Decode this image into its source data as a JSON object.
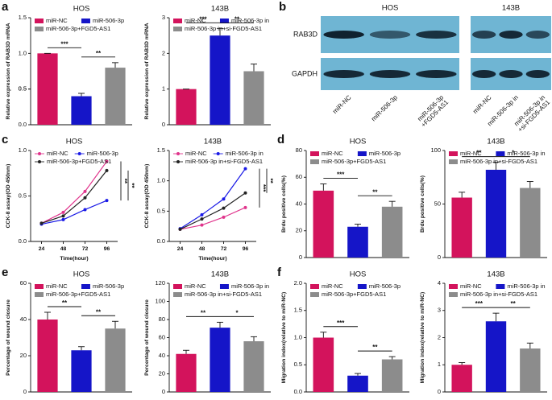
{
  "chart_data": [
    {
      "panel": "a",
      "type": "bar",
      "title": "HOS",
      "ylabel": "Relative expression of RAB3D mRNA",
      "categories": [
        "miR-NC",
        "miR-506-3p",
        "miR-506-3p+FGD5-AS1"
      ],
      "colors": [
        "#d3135c",
        "#1515c8",
        "#8c8c8c"
      ],
      "values": [
        1.0,
        0.4,
        0.8
      ],
      "errors": [
        0,
        0.04,
        0.07
      ],
      "ylim": [
        0,
        1.5
      ],
      "yticks": [
        {
          "value": 0,
          "label": "0.0"
        },
        0.5,
        {
          "value": 1,
          "label": "1.0"
        },
        0.5,
        {
          "value": 1.5,
          "label": "1.5"
        }
      ],
      "annotations": [
        "***",
        "**"
      ]
    },
    {
      "type": "bar",
      "title": "143B",
      "ylabel": "Relative expression of RAB3D mRNA",
      "categories": [
        "miR-NC",
        "miR-506-3p in",
        "miR-506-3p in+si-FGD5-AS1"
      ],
      "colors": [
        "#d3135c",
        "#1515c8",
        "#8c8c8c"
      ],
      "values": [
        1.0,
        2.5,
        1.5
      ],
      "errors": [
        0,
        0.2,
        0.2
      ],
      "ylim": [
        0,
        3
      ],
      "yticks": [
        0,
        1,
        2,
        3
      ],
      "annotations": [
        "***",
        "**"
      ]
    },
    {
      "panel": "c",
      "type": "line",
      "title": "HOS",
      "ylabel": "CCK-8 assay(OD 450nm)",
      "xlabel": "Time(hour)",
      "x": [
        24,
        48,
        72,
        96
      ],
      "xlim": [
        12,
        108
      ],
      "xticks": [
        24,
        48,
        72,
        96
      ],
      "ylim": [
        0,
        1.0
      ],
      "yticks": [
        {
          "value": 0,
          "label": "0.0"
        },
        0.5,
        {
          "value": 1,
          "label": "1.0"
        }
      ],
      "series": [
        {
          "name": "miR-NC",
          "color": "#e0348c",
          "values": [
            0.2,
            0.32,
            0.55,
            0.88
          ]
        },
        {
          "name": "miR-506-3p",
          "color": "#1a1ae6",
          "values": [
            0.19,
            0.24,
            0.35,
            0.45
          ]
        },
        {
          "name": "miR-506-3p+FGD5-AS1",
          "color": "#222222",
          "values": [
            0.2,
            0.28,
            0.48,
            0.78
          ]
        }
      ],
      "annotations": [
        "**",
        "**"
      ]
    },
    {
      "type": "line",
      "title": "143B",
      "ylabel": "CCK-8 assay(OD 450nm)",
      "xlabel": "Time(hour)",
      "x": [
        24,
        48,
        72,
        96
      ],
      "xlim": [
        12,
        108
      ],
      "xticks": [
        24,
        48,
        72,
        96
      ],
      "ylim": [
        0,
        1.5
      ],
      "yticks": [
        {
          "value": 0,
          "label": "0.0"
        },
        0.5,
        {
          "value": 1,
          "label": "1.0"
        },
        {
          "value": 1.5,
          "label": "1.5"
        }
      ],
      "series": [
        {
          "name": "miR-NC",
          "color": "#e0348c",
          "values": [
            0.2,
            0.27,
            0.4,
            0.56
          ]
        },
        {
          "name": "miR-506-3p in",
          "color": "#1a1ae6",
          "values": [
            0.21,
            0.44,
            0.7,
            1.2
          ]
        },
        {
          "name": "miR-506-3p in+si-FGD5-AS1",
          "color": "#222222",
          "values": [
            0.2,
            0.37,
            0.55,
            0.8
          ]
        }
      ],
      "annotations": [
        "***",
        "**"
      ]
    },
    {
      "panel": "d",
      "type": "bar",
      "title": "HOS",
      "ylabel": "Brdu positive cells(%)",
      "categories": [
        "miR-NC",
        "miR-506-3p",
        "miR-506-3p+FGD5-AS1"
      ],
      "colors": [
        "#d3135c",
        "#1515c8",
        "#8c8c8c"
      ],
      "values": [
        50,
        23,
        38
      ],
      "errors": [
        5,
        2,
        4
      ],
      "ylim": [
        0,
        80
      ],
      "yticks": [
        0,
        20,
        40,
        60,
        80
      ],
      "annotations": [
        "***",
        "**"
      ]
    },
    {
      "type": "bar",
      "title": "143B",
      "ylabel": "Brdu positive cells(%)",
      "categories": [
        "miR-NC",
        "miR-506-3p in",
        "miR-506-3p in+si-FGD5-AS1"
      ],
      "colors": [
        "#d3135c",
        "#1515c8",
        "#8c8c8c"
      ],
      "values": [
        56,
        82,
        65
      ],
      "errors": [
        5,
        7,
        6
      ],
      "ylim": [
        0,
        100
      ],
      "yticks": [
        0,
        50,
        100
      ],
      "annotations": [
        "**",
        "*"
      ]
    },
    {
      "panel": "e",
      "type": "bar",
      "title": "HOS",
      "ylabel": "Percentage of wound closure",
      "categories": [
        "miR-NC",
        "miR-506-3p",
        "miR-506-3p+FGD5-AS1"
      ],
      "colors": [
        "#d3135c",
        "#1515c8",
        "#8c8c8c"
      ],
      "values": [
        40,
        23,
        35
      ],
      "errors": [
        4,
        2,
        4
      ],
      "ylim": [
        0,
        60
      ],
      "yticks": [
        0,
        20,
        40,
        60
      ],
      "annotations": [
        "**",
        "**"
      ]
    },
    {
      "type": "bar",
      "title": "143B",
      "ylabel": "Percentage of wound closure",
      "categories": [
        "miR-NC",
        "miR-506-3p in",
        "miR-506-3p in+si-FGD5-AS1"
      ],
      "colors": [
        "#d3135c",
        "#1515c8",
        "#8c8c8c"
      ],
      "values": [
        42,
        71,
        56
      ],
      "errors": [
        4,
        6,
        5
      ],
      "ylim": [
        0,
        120
      ],
      "yticks": [
        0,
        20,
        40,
        60,
        80,
        100,
        120
      ],
      "annotations": [
        "**",
        "*"
      ]
    },
    {
      "panel": "f",
      "type": "bar",
      "title": "HOS",
      "ylabel": "Migration index(relative to miR-NC)",
      "categories": [
        "miR-NC",
        "miR-506-3p",
        "miR-506-3p+FGD5-AS1"
      ],
      "colors": [
        "#d3135c",
        "#1515c8",
        "#8c8c8c"
      ],
      "values": [
        1.0,
        0.3,
        0.6
      ],
      "errors": [
        0.1,
        0.04,
        0.05
      ],
      "ylim": [
        0,
        2.0
      ],
      "yticks": [
        {
          "value": 0,
          "label": "0.0"
        },
        0.5,
        {
          "value": 1,
          "label": "1.0"
        },
        1.5,
        {
          "value": 2,
          "label": "2.0"
        }
      ],
      "annotations": [
        "***",
        "**"
      ]
    },
    {
      "type": "bar",
      "title": "143B",
      "ylabel": "Migration index(relative to miR-NC)",
      "categories": [
        "miR-NC",
        "miR-506-3p in",
        "miR-506-3p in+si-FGD5-AS1"
      ],
      "colors": [
        "#d3135c",
        "#1515c8",
        "#8c8c8c"
      ],
      "values": [
        1.0,
        2.6,
        1.6
      ],
      "errors": [
        0.08,
        0.3,
        0.2
      ],
      "ylim": [
        0,
        4
      ],
      "yticks": [
        0,
        1,
        2,
        3,
        4
      ],
      "annotations": [
        "***",
        "**"
      ]
    }
  ],
  "blot": {
    "panel": "b",
    "rows": [
      "RAB3D",
      "GAPDH"
    ],
    "groups": [
      {
        "title": "HOS",
        "lanes": [
          [
            "miR-NC"
          ],
          [
            "miR-506-3p"
          ],
          [
            "miR-506-3p",
            "+FGD5-AS1"
          ]
        ]
      },
      {
        "title": "143B",
        "lanes": [
          [
            "miR-NC"
          ],
          [
            "miR-506-3p in"
          ],
          [
            "miR-506-3p in",
            "+si-FGD5-AS1"
          ]
        ]
      }
    ]
  }
}
